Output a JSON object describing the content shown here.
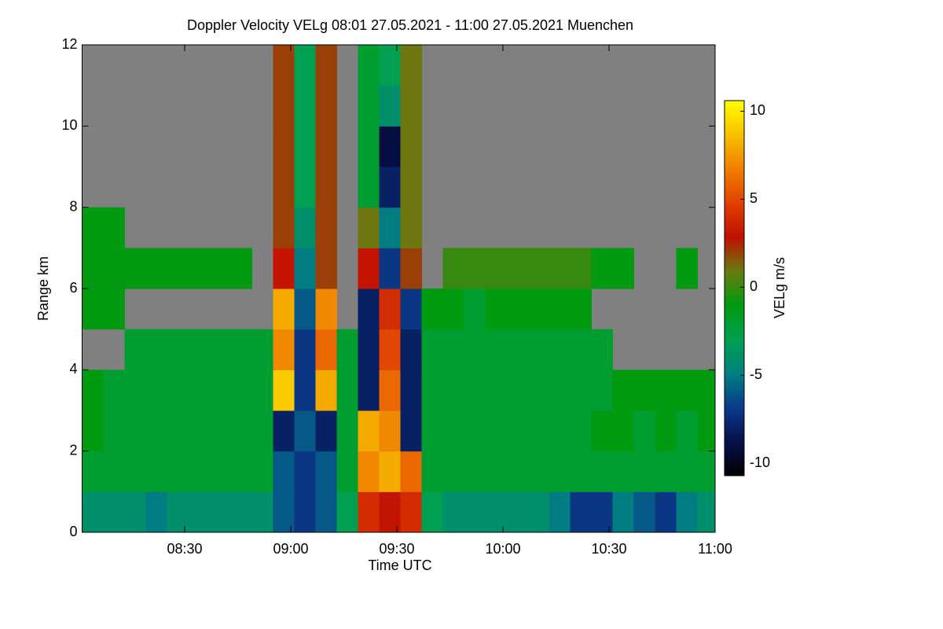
{
  "chart_data": {
    "type": "heatmap",
    "title": "Doppler Velocity VELg   08:01 27.05.2021 - 11:00 27.05.2021 Muenchen",
    "x_label": "Time UTC",
    "y_label": "Range km",
    "colorbar_label": "VELg m/s",
    "xlim": [
      481,
      660
    ],
    "xticks": [
      {
        "value": 510,
        "label": "08:30"
      },
      {
        "value": 540,
        "label": "09:00"
      },
      {
        "value": 570,
        "label": "09:30"
      },
      {
        "value": 600,
        "label": "10:00"
      },
      {
        "value": 630,
        "label": "10:30"
      },
      {
        "value": 660,
        "label": "11:00"
      }
    ],
    "ylim": [
      0,
      12
    ],
    "yticks": [
      0,
      2,
      4,
      6,
      8,
      10,
      12
    ],
    "zlim": [
      -10.7,
      10.6
    ],
    "zticks": [
      -10,
      -5,
      0,
      5,
      10
    ],
    "colormap": [
      "#000000",
      "#06104a",
      "#0a3a8a",
      "#008080",
      "#00a050",
      "#009a10",
      "#6a7a10",
      "#c01000",
      "#e04000",
      "#f08000",
      "#f8c000",
      "#ffff00"
    ],
    "null_color": "#808080",
    "x": [
      484,
      490,
      496,
      502,
      508,
      514,
      520,
      526,
      532,
      538,
      544,
      550,
      556,
      562,
      568,
      574,
      580,
      586,
      592,
      598,
      604,
      610,
      616,
      622,
      628,
      634,
      640,
      646,
      652,
      658
    ],
    "y": [
      0.5,
      1.5,
      2.5,
      3.5,
      4.5,
      5.5,
      6.5,
      7.5,
      8.5,
      9.5,
      10.5,
      11.5
    ],
    "z": [
      [
        -4,
        -4,
        -4,
        -5,
        -4,
        -4,
        -4,
        -4,
        -4,
        -6,
        -7,
        -6,
        -3,
        4,
        3,
        4,
        -3,
        -4,
        -4,
        -4,
        -4,
        -4,
        -5,
        -7,
        -7,
        -5,
        -6,
        -7,
        -5,
        -4
      ],
      [
        -2,
        -2,
        -2,
        -2,
        -2,
        -2,
        -2,
        -2,
        -2,
        -6,
        -7,
        -6,
        -2,
        7,
        8,
        6,
        -2,
        -2,
        -2,
        -2,
        -2,
        -2,
        -2,
        -2,
        -2,
        -2,
        -2,
        -2,
        -2,
        -2
      ],
      [
        -1,
        -2,
        -2,
        -2,
        -2,
        -2,
        -2,
        -2,
        -2,
        -8,
        -6,
        -8,
        -2,
        8,
        7,
        -8,
        -2,
        -2,
        -2,
        -2,
        -2,
        -2,
        -2,
        -2,
        -1,
        -1,
        -2,
        -1,
        -2,
        -1
      ],
      [
        -1,
        -2,
        -2,
        -2,
        -2,
        -2,
        -2,
        -2,
        -2,
        9,
        -7,
        8,
        -2,
        -8,
        6,
        -8,
        -2,
        -2,
        -2,
        -2,
        -2,
        -2,
        -2,
        -2,
        -2,
        -1,
        -1,
        -1,
        -1,
        -1
      ],
      [
        null,
        null,
        -2,
        -2,
        -2,
        -2,
        -2,
        -2,
        -2,
        7,
        -7,
        6,
        -2,
        -8,
        5,
        -8,
        -2,
        -2,
        -2,
        -2,
        -2,
        -2,
        -2,
        -2,
        -2,
        null,
        null,
        null,
        null,
        null
      ],
      [
        -1,
        -1,
        null,
        null,
        null,
        null,
        null,
        null,
        null,
        8,
        -6,
        7,
        null,
        -8,
        4,
        -7,
        -1,
        -1,
        -2,
        -1,
        -1,
        -1,
        -1,
        -1,
        null,
        null,
        null,
        null,
        null,
        null
      ],
      [
        -1,
        -1,
        -1,
        -1,
        -1,
        -1,
        -1,
        -1,
        null,
        3,
        -5,
        2,
        null,
        3,
        -7,
        2,
        null,
        0,
        0,
        0,
        0,
        0,
        0,
        0,
        -1,
        -1,
        null,
        null,
        -1,
        null
      ],
      [
        -1,
        -1,
        null,
        null,
        null,
        null,
        null,
        null,
        null,
        2,
        -4,
        2,
        null,
        1,
        -5,
        1,
        null,
        null,
        null,
        null,
        null,
        null,
        null,
        null,
        null,
        null,
        null,
        null,
        null,
        null
      ],
      [
        null,
        null,
        null,
        null,
        null,
        null,
        null,
        null,
        null,
        2,
        -3,
        2,
        null,
        -2,
        -8,
        1,
        null,
        null,
        null,
        null,
        null,
        null,
        null,
        null,
        null,
        null,
        null,
        null,
        null,
        null
      ],
      [
        null,
        null,
        null,
        null,
        null,
        null,
        null,
        null,
        null,
        2,
        -3,
        2,
        null,
        -2,
        -9,
        1,
        null,
        null,
        null,
        null,
        null,
        null,
        null,
        null,
        null,
        null,
        null,
        null,
        null,
        null
      ],
      [
        null,
        null,
        null,
        null,
        null,
        null,
        null,
        null,
        null,
        2,
        -3,
        2,
        null,
        -2,
        -4,
        1,
        null,
        null,
        null,
        null,
        null,
        null,
        null,
        null,
        null,
        null,
        null,
        null,
        null,
        null
      ],
      [
        null,
        null,
        null,
        null,
        null,
        null,
        null,
        null,
        null,
        2,
        -3,
        2,
        null,
        -2,
        -3,
        1,
        null,
        null,
        null,
        null,
        null,
        null,
        null,
        null,
        null,
        null,
        null,
        null,
        null,
        null
      ]
    ]
  }
}
